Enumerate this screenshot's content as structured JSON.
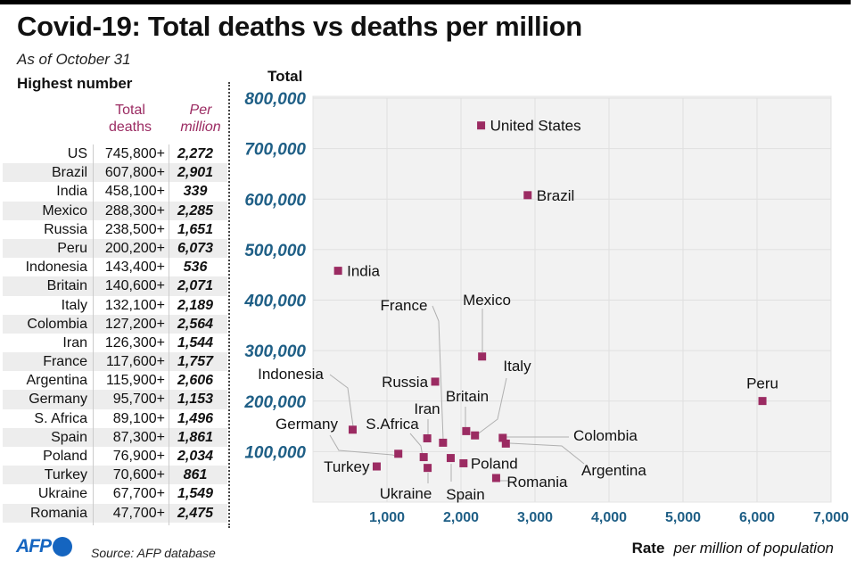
{
  "header": {
    "title": "Covid-19: Total deaths vs deaths per million",
    "subtitle": "As of October 31"
  },
  "table": {
    "title": "Highest number",
    "col_total_line1": "Total",
    "col_total_line2": "deaths",
    "col_per_line1": "Per",
    "col_per_line2": "million",
    "rows": [
      {
        "country": "US",
        "total": "745,800+",
        "per_million": "2,272"
      },
      {
        "country": "Brazil",
        "total": "607,800+",
        "per_million": "2,901"
      },
      {
        "country": "India",
        "total": "458,100+",
        "per_million": "339"
      },
      {
        "country": "Mexico",
        "total": "288,300+",
        "per_million": "2,285"
      },
      {
        "country": "Russia",
        "total": "238,500+",
        "per_million": "1,651"
      },
      {
        "country": "Peru",
        "total": "200,200+",
        "per_million": "6,073"
      },
      {
        "country": "Indonesia",
        "total": "143,400+",
        "per_million": "536"
      },
      {
        "country": "Britain",
        "total": "140,600+",
        "per_million": "2,071"
      },
      {
        "country": "Italy",
        "total": "132,100+",
        "per_million": "2,189"
      },
      {
        "country": "Colombia",
        "total": "127,200+",
        "per_million": "2,564"
      },
      {
        "country": "Iran",
        "total": "126,300+",
        "per_million": "1,544"
      },
      {
        "country": "France",
        "total": "117,600+",
        "per_million": "1,757"
      },
      {
        "country": "Argentina",
        "total": "115,900+",
        "per_million": "2,606"
      },
      {
        "country": "Germany",
        "total": "95,700+",
        "per_million": "1,153"
      },
      {
        "country": "S. Africa",
        "total": "89,100+",
        "per_million": "1,496"
      },
      {
        "country": "Spain",
        "total": "87,300+",
        "per_million": "1,861"
      },
      {
        "country": "Poland",
        "total": "76,900+",
        "per_million": "2,034"
      },
      {
        "country": "Turkey",
        "total": "70,600+",
        "per_million": "861"
      },
      {
        "country": "Ukraine",
        "total": "67,700+",
        "per_million": "1,549"
      },
      {
        "country": "Romania",
        "total": "47,700+",
        "per_million": "2,475"
      }
    ]
  },
  "footer": {
    "logo": "AFP",
    "source": "Source: AFP database"
  },
  "colors": {
    "marker": "#9b2b62",
    "axis_tick": "#1f5f86",
    "plot_bg": "#f2f2f2",
    "grid": "#e0e0e0",
    "brand": "#1565c0"
  },
  "chart_data": {
    "type": "scatter",
    "title": "Covid-19: Total deaths vs deaths per million",
    "ylabel": "Total",
    "xlabel_bold": "Rate",
    "xlabel_italic": "per million of population",
    "xlim": [
      0,
      7000
    ],
    "ylim": [
      0,
      800000
    ],
    "xticks": [
      1000,
      2000,
      3000,
      4000,
      5000,
      6000,
      7000
    ],
    "xtick_labels": [
      "1,000",
      "2,000",
      "3,000",
      "4,000",
      "5,000",
      "6,000",
      "7,000"
    ],
    "yticks": [
      100000,
      200000,
      300000,
      400000,
      500000,
      600000,
      700000,
      800000
    ],
    "ytick_labels": [
      "100,000",
      "200,000",
      "300,000",
      "400,000",
      "500,000",
      "600,000",
      "700,000",
      "800,000"
    ],
    "grid": true,
    "points": [
      {
        "label": "United States",
        "x": 2272,
        "y": 745800
      },
      {
        "label": "Brazil",
        "x": 2901,
        "y": 607800
      },
      {
        "label": "India",
        "x": 339,
        "y": 458100
      },
      {
        "label": "Mexico",
        "x": 2285,
        "y": 288300
      },
      {
        "label": "Russia",
        "x": 1651,
        "y": 238500
      },
      {
        "label": "Peru",
        "x": 6073,
        "y": 200200
      },
      {
        "label": "Indonesia",
        "x": 536,
        "y": 143400
      },
      {
        "label": "Britain",
        "x": 2071,
        "y": 140600
      },
      {
        "label": "Italy",
        "x": 2189,
        "y": 132100
      },
      {
        "label": "Colombia",
        "x": 2564,
        "y": 127200
      },
      {
        "label": "Iran",
        "x": 1544,
        "y": 126300
      },
      {
        "label": "France",
        "x": 1757,
        "y": 117600
      },
      {
        "label": "Argentina",
        "x": 2606,
        "y": 115900
      },
      {
        "label": "Germany",
        "x": 1153,
        "y": 95700
      },
      {
        "label": "S.Africa",
        "x": 1496,
        "y": 89100
      },
      {
        "label": "Spain",
        "x": 1861,
        "y": 87300
      },
      {
        "label": "Poland",
        "x": 2034,
        "y": 76900
      },
      {
        "label": "Turkey",
        "x": 861,
        "y": 70600
      },
      {
        "label": "Ukraine",
        "x": 1549,
        "y": 67700
      },
      {
        "label": "Romania",
        "x": 2475,
        "y": 47700
      }
    ]
  }
}
